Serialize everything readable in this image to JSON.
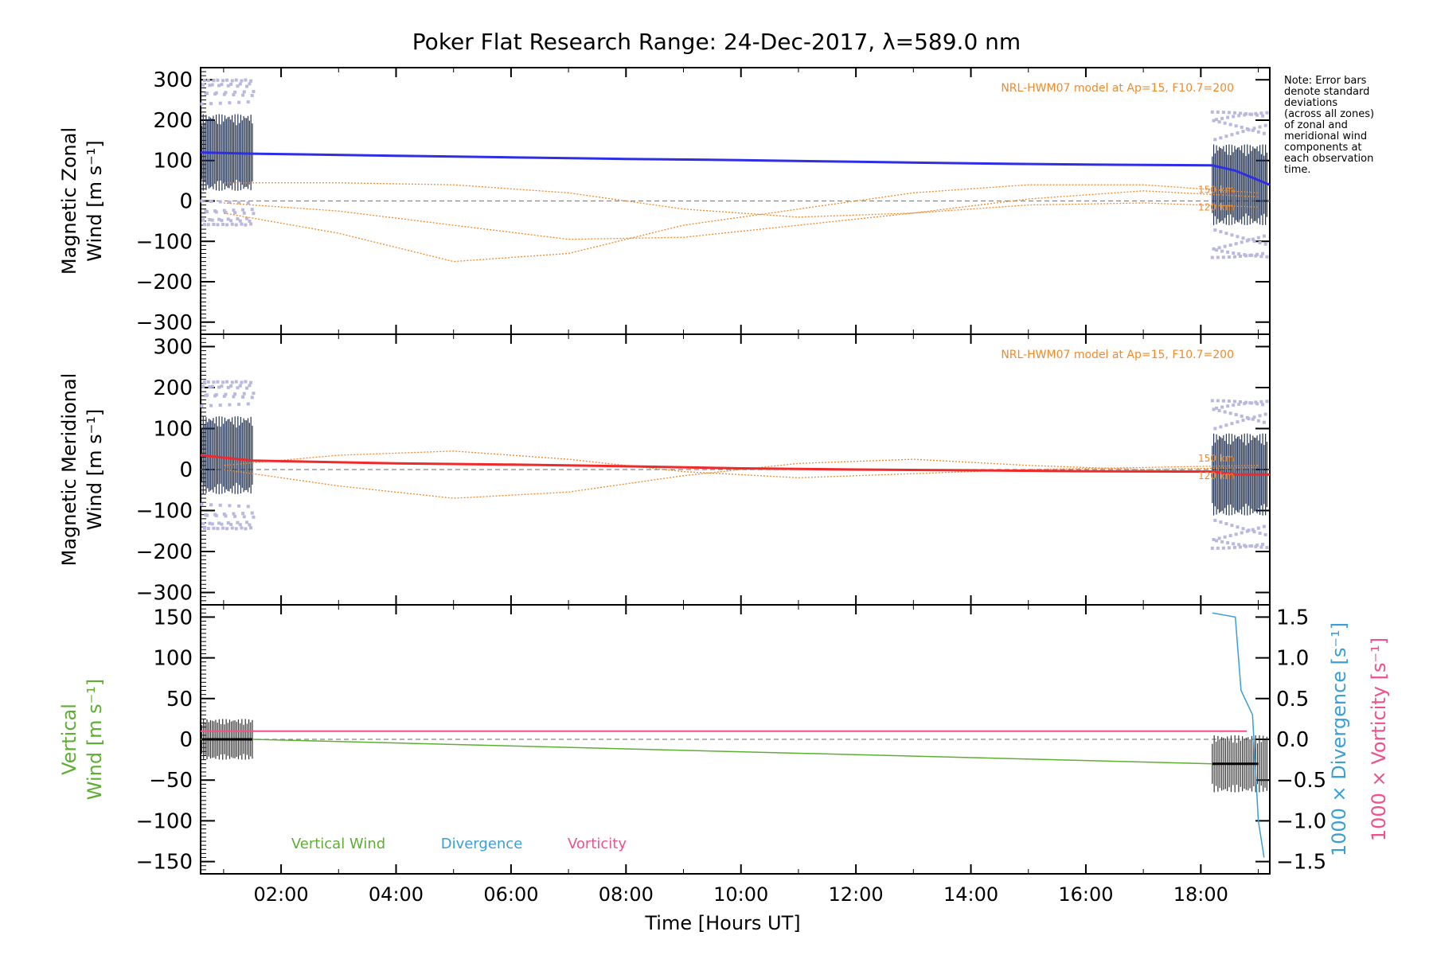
{
  "title": "Poker Flat Research Range: 24-Dec-2017, λ=589.0 nm",
  "note": [
    "Note: Error bars",
    "denote standard",
    "deviations",
    "(across all zones)",
    "of zonal and",
    "meridional wind",
    "components at",
    "each observation",
    "time."
  ],
  "colors": {
    "zonal": "#2e2ee6",
    "meridional": "#ee2a2a",
    "model": "#f08a2a",
    "vertical": "#5fae34",
    "divergence": "#3a9fd6",
    "vorticity": "#f0508c",
    "scatter": "#b8b8e0",
    "zero": "#888888"
  },
  "chart_data": [
    {
      "type": "line",
      "panel": "zonal",
      "ylabel": [
        "Magnetic Zonal",
        "Wind [m s⁻¹]"
      ],
      "ylim": [
        -330,
        330
      ],
      "yticks": [
        300,
        200,
        100,
        0,
        -100,
        -200,
        -300
      ],
      "xlim": [
        0.6,
        19.2
      ],
      "xticks": [
        "02:00",
        "04:00",
        "06:00",
        "08:00",
        "10:00",
        "12:00",
        "14:00",
        "16:00",
        "18:00"
      ],
      "model_label": "NRL-HWM07 model at Ap=15, F10.7=200",
      "model_alt_labels": [
        "150 km",
        "120 km"
      ],
      "series": [
        {
          "name": "zonal",
          "x": [
            0.6,
            1.5,
            4.0,
            6.0,
            8.0,
            10.0,
            12.0,
            14.0,
            16.0,
            18.2,
            18.6,
            19.2
          ],
          "values": [
            120,
            117,
            112,
            108,
            104,
            101,
            97,
            93,
            90,
            88,
            75,
            40
          ]
        }
      ],
      "model_series": [
        {
          "x": [
            1,
            3,
            5,
            7,
            9,
            11,
            13,
            15,
            17,
            19
          ],
          "values": [
            45,
            45,
            40,
            20,
            -20,
            -40,
            -30,
            -10,
            -5,
            -15
          ]
        },
        {
          "x": [
            1,
            3,
            5,
            7,
            9,
            11,
            13,
            15,
            17,
            19
          ],
          "values": [
            -5,
            -25,
            -60,
            -95,
            -90,
            -60,
            -30,
            5,
            25,
            10
          ]
        },
        {
          "x": [
            1,
            3,
            5,
            7,
            9,
            11,
            13,
            15,
            17,
            19
          ],
          "values": [
            -30,
            -80,
            -150,
            -130,
            -60,
            -20,
            20,
            40,
            40,
            20
          ]
        }
      ]
    },
    {
      "type": "line",
      "panel": "meridional",
      "ylabel": [
        "Magnetic Meridional",
        "Wind [m s⁻¹]"
      ],
      "ylim": [
        -330,
        330
      ],
      "yticks": [
        300,
        200,
        100,
        0,
        -100,
        -200,
        -300
      ],
      "xlim": [
        0.6,
        19.2
      ],
      "model_label": "NRL-HWM07 model at Ap=15, F10.7=200",
      "model_alt_labels": [
        "150 km",
        "120 km"
      ],
      "series": [
        {
          "name": "meridional",
          "x": [
            0.6,
            1.5,
            4.0,
            6.0,
            8.0,
            10.0,
            12.0,
            14.0,
            16.0,
            18.2,
            18.6,
            19.2
          ],
          "values": [
            35,
            22,
            15,
            12,
            8,
            3,
            0,
            -2,
            -4,
            -5,
            -12,
            -12
          ]
        }
      ],
      "model_series": [
        {
          "x": [
            1,
            3,
            5,
            7,
            9,
            11,
            13,
            15,
            17,
            19
          ],
          "values": [
            10,
            35,
            45,
            25,
            -5,
            -20,
            -10,
            0,
            5,
            10
          ]
        },
        {
          "x": [
            1,
            3,
            5,
            7,
            9,
            11,
            13,
            15,
            17,
            19
          ],
          "values": [
            0,
            -40,
            -70,
            -55,
            -15,
            15,
            25,
            10,
            0,
            5
          ]
        }
      ]
    },
    {
      "type": "line",
      "panel": "vertical",
      "ylabel_left": [
        "Vertical",
        "Wind [m s⁻¹]"
      ],
      "ylabel_right_1": "1000 × Divergence [s⁻¹]",
      "ylabel_right_2": "1000 × Vorticity [s⁻¹]",
      "ylim": [
        -165,
        165
      ],
      "yticks": [
        150,
        100,
        50,
        0,
        -50,
        -100,
        -150
      ],
      "yticks_right": [
        "1.5",
        "1.0",
        "0.5",
        "0.0",
        "−0.5",
        "−1.0",
        "−1.5"
      ],
      "ylim_right": [
        -1.65,
        1.65
      ],
      "xlim": [
        0.6,
        19.2
      ],
      "xlabel": "Time [Hours UT]",
      "legend": [
        "Vertical Wind",
        "Divergence",
        "Vorticity"
      ],
      "series": [
        {
          "name": "Vertical Wind",
          "x": [
            0.6,
            1.5,
            18.2,
            19.0
          ],
          "values": [
            0,
            0,
            -30,
            -30
          ]
        },
        {
          "name": "Vorticity",
          "axis": "right",
          "x": [
            0.6,
            18.8
          ],
          "values": [
            0.1,
            0.1
          ]
        },
        {
          "name": "Divergence",
          "axis": "right",
          "x": [
            18.2,
            18.6,
            18.7,
            18.9,
            19.0,
            19.1
          ],
          "values": [
            1.55,
            1.5,
            0.6,
            0.3,
            -1.0,
            -1.45
          ]
        }
      ]
    }
  ]
}
